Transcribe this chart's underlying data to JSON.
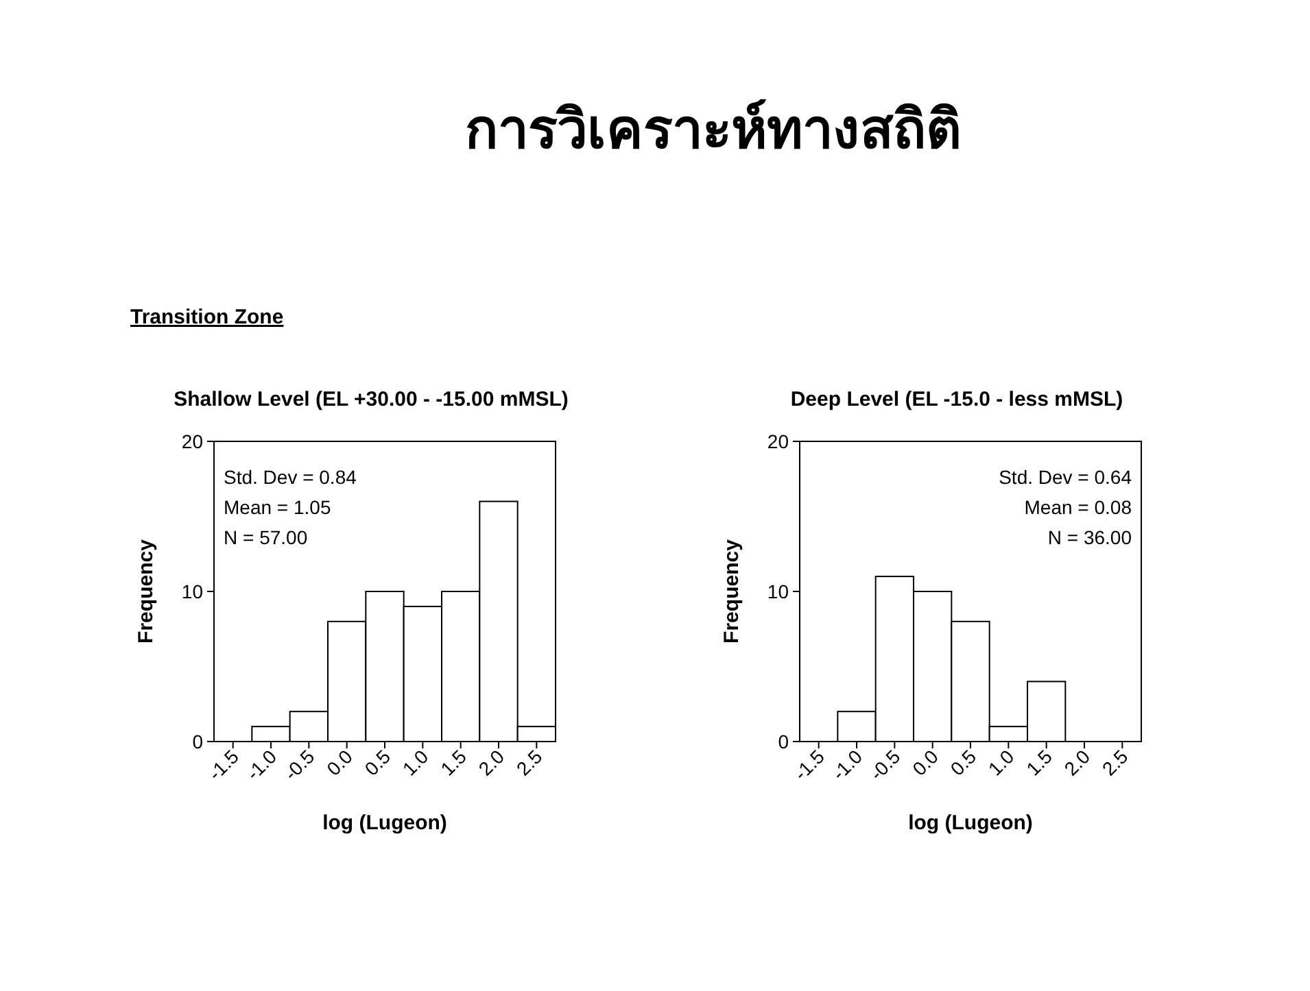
{
  "chart_data": [
    {
      "type": "other",
      "title": "การวิเคราะห์ทางสถิติ",
      "subtitle": "Transition Zone"
    },
    {
      "type": "histogram",
      "title": "Shallow Level (EL +30.00 - -15.00 mMSL)",
      "xlabel": "log (Lugeon)",
      "ylabel": "Frequency",
      "bins": [
        -1.25,
        -0.75,
        -0.25,
        0.25,
        0.75,
        1.25,
        1.75,
        2.25,
        2.75
      ],
      "values": [
        1,
        2,
        8,
        10,
        9,
        10,
        16,
        1
      ],
      "color": "#ffffff",
      "xlim": [
        -1.75,
        2.75
      ],
      "xticks": [
        -1.5,
        {
          "value": -1,
          "label": "-1.0"
        },
        -0.5,
        {
          "value": 0,
          "label": "0.0"
        },
        0.5,
        {
          "value": 1,
          "label": "1.0"
        },
        1.5,
        {
          "value": 2,
          "label": "2.0"
        },
        2.5
      ],
      "ylim": [
        0,
        20
      ],
      "yticks": [
        0,
        10,
        20
      ],
      "annotations": [
        "Std. Dev = 0.84",
        "Mean = 1.05",
        "N = 57.00"
      ]
    },
    {
      "type": "histogram",
      "title": "Deep Level (EL -15.0 - less mMSL)",
      "xlabel": "log (Lugeon)",
      "ylabel": "Frequency",
      "bins": [
        -1.25,
        -0.75,
        -0.25,
        0.25,
        0.75,
        1.25,
        1.75
      ],
      "values": [
        2,
        11,
        10,
        8,
        1,
        4
      ],
      "color": "#ffffff",
      "xlim": [
        -1.75,
        2.75
      ],
      "xticks": [
        -1.5,
        {
          "value": -1,
          "label": "-1.0"
        },
        -0.5,
        {
          "value": 0,
          "label": "0.0"
        },
        0.5,
        {
          "value": 1,
          "label": "1.0"
        },
        1.5,
        {
          "value": 2,
          "label": "2.0"
        },
        2.5
      ],
      "ylim": [
        0,
        20
      ],
      "yticks": [
        0,
        10,
        20
      ],
      "annotations": [
        "Std. Dev = 0.64",
        "Mean = 0.08",
        "N = 36.00"
      ]
    }
  ]
}
